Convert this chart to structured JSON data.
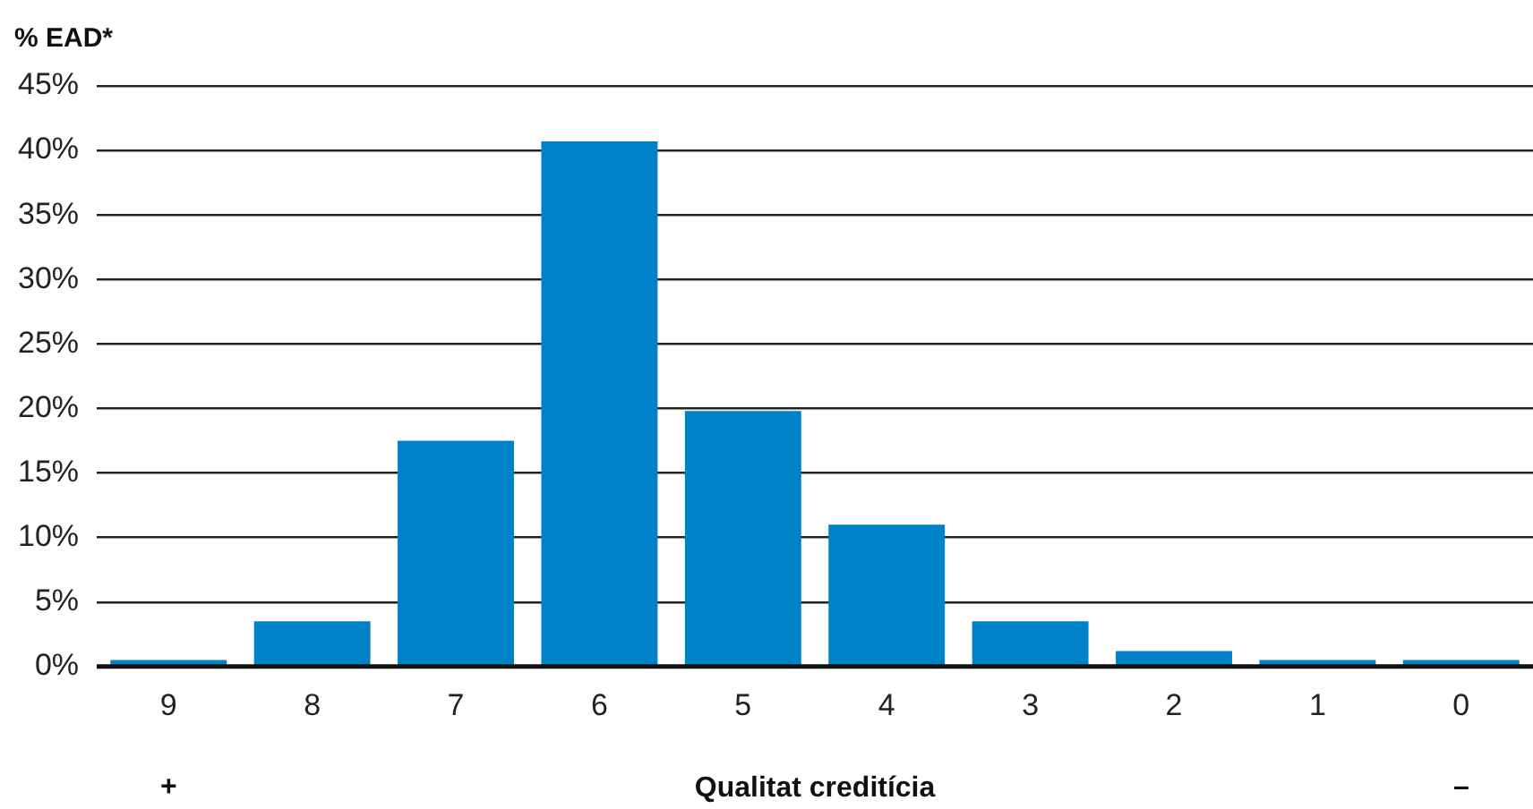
{
  "chart_data": {
    "type": "bar",
    "ylabel": "% EAD*",
    "xlabel": "Qualitat creditícia",
    "categories": [
      "9",
      "8",
      "7",
      "6",
      "5",
      "4",
      "3",
      "2",
      "1",
      "0"
    ],
    "values": [
      0.5,
      3.5,
      17.5,
      40.7,
      19.8,
      11.0,
      3.5,
      1.2,
      0.5,
      0.5
    ],
    "color": "#0082c8",
    "ylim": [
      0,
      45
    ],
    "yticks": [
      {
        "value": 0,
        "label": "0%"
      },
      {
        "value": 5,
        "label": "5%"
      },
      {
        "value": 10,
        "label": "10%"
      },
      {
        "value": 15,
        "label": "15%"
      },
      {
        "value": 20,
        "label": "20%"
      },
      {
        "value": 25,
        "label": "25%"
      },
      {
        "value": 30,
        "label": "30%"
      },
      {
        "value": 35,
        "label": "35%"
      },
      {
        "value": 40,
        "label": "40%"
      },
      {
        "value": 45,
        "label": "45%"
      }
    ],
    "annotations": [
      "+",
      "–"
    ],
    "grid": "y",
    "legend": false
  }
}
